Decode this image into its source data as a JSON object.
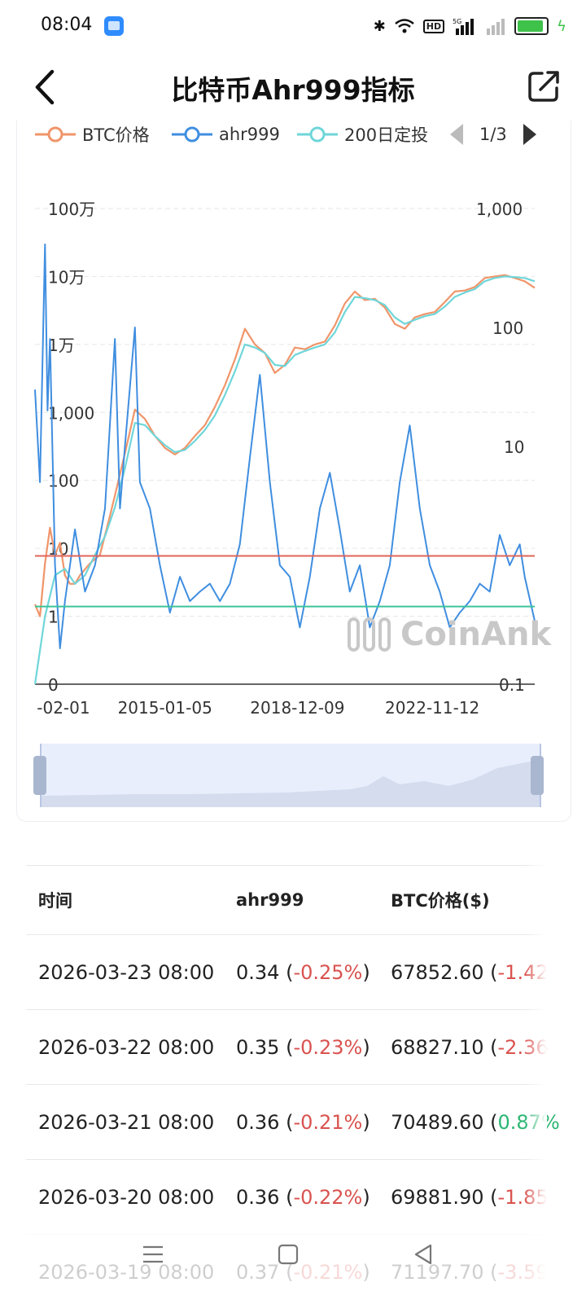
{
  "status": {
    "time": "08:04",
    "hd": "HD",
    "signal_label": "5G",
    "battery_level": 0.9
  },
  "header": {
    "title": "比特币Ahr999指标"
  },
  "legend": {
    "items": [
      {
        "label": "BTC价格",
        "color": "#f0956a"
      },
      {
        "label": "ahr999",
        "color": "#3f8ee0"
      },
      {
        "label": "200日定投",
        "color": "#6fd6d9"
      }
    ],
    "page": "1/3"
  },
  "watermark": "CoinAnk",
  "chart_data": {
    "type": "line",
    "x_tick_labels": [
      "-02-01",
      "2015-01-05",
      "2018-12-09",
      "2022-11-12"
    ],
    "y_left_ticks": [
      "100万",
      "10万",
      "1万",
      "1,000",
      "100",
      "10",
      "1",
      "0"
    ],
    "y_right_ticks": [
      "1,000",
      "100",
      "10",
      "0.1"
    ],
    "y_left_scale": "log",
    "y_right_scale": "log",
    "reference_lines": [
      {
        "value": 1.2,
        "color": "#e0645a"
      },
      {
        "value": 0.45,
        "color": "#3cc39a"
      }
    ],
    "series": [
      {
        "name": "BTC价格",
        "axis": "left",
        "color": "#f0956a",
        "points": [
          [
            0.0,
            1.5
          ],
          [
            0.01,
            1
          ],
          [
            0.02,
            6
          ],
          [
            0.03,
            20
          ],
          [
            0.04,
            8
          ],
          [
            0.05,
            12
          ],
          [
            0.06,
            4
          ],
          [
            0.07,
            3
          ],
          [
            0.08,
            3
          ],
          [
            0.09,
            4
          ],
          [
            0.11,
            6
          ],
          [
            0.13,
            8
          ],
          [
            0.15,
            30
          ],
          [
            0.16,
            60
          ],
          [
            0.18,
            250
          ],
          [
            0.2,
            1100
          ],
          [
            0.22,
            800
          ],
          [
            0.24,
            450
          ],
          [
            0.26,
            300
          ],
          [
            0.28,
            240
          ],
          [
            0.3,
            300
          ],
          [
            0.32,
            450
          ],
          [
            0.34,
            650
          ],
          [
            0.36,
            1200
          ],
          [
            0.38,
            2500
          ],
          [
            0.4,
            6000
          ],
          [
            0.42,
            17000
          ],
          [
            0.44,
            10000
          ],
          [
            0.46,
            7500
          ],
          [
            0.48,
            3800
          ],
          [
            0.5,
            5000
          ],
          [
            0.52,
            9000
          ],
          [
            0.54,
            8500
          ],
          [
            0.56,
            10000
          ],
          [
            0.58,
            11000
          ],
          [
            0.6,
            19000
          ],
          [
            0.62,
            40000
          ],
          [
            0.64,
            60000
          ],
          [
            0.66,
            45000
          ],
          [
            0.68,
            47000
          ],
          [
            0.7,
            35000
          ],
          [
            0.72,
            20000
          ],
          [
            0.74,
            17000
          ],
          [
            0.76,
            25000
          ],
          [
            0.78,
            28000
          ],
          [
            0.8,
            30000
          ],
          [
            0.82,
            42000
          ],
          [
            0.84,
            60000
          ],
          [
            0.86,
            62000
          ],
          [
            0.88,
            70000
          ],
          [
            0.9,
            95000
          ],
          [
            0.92,
            100000
          ],
          [
            0.94,
            105000
          ],
          [
            0.96,
            95000
          ],
          [
            0.98,
            85000
          ],
          [
            1.0,
            68000
          ]
        ]
      },
      {
        "name": "200日定投",
        "axis": "left",
        "color": "#6fd6d9",
        "points": [
          [
            0.0,
            0.1
          ],
          [
            0.02,
            1
          ],
          [
            0.04,
            4
          ],
          [
            0.06,
            5
          ],
          [
            0.08,
            3
          ],
          [
            0.1,
            4
          ],
          [
            0.12,
            8
          ],
          [
            0.14,
            15
          ],
          [
            0.16,
            40
          ],
          [
            0.18,
            150
          ],
          [
            0.2,
            700
          ],
          [
            0.22,
            650
          ],
          [
            0.24,
            450
          ],
          [
            0.26,
            330
          ],
          [
            0.28,
            260
          ],
          [
            0.3,
            280
          ],
          [
            0.32,
            380
          ],
          [
            0.34,
            550
          ],
          [
            0.36,
            900
          ],
          [
            0.38,
            1800
          ],
          [
            0.4,
            4000
          ],
          [
            0.42,
            10000
          ],
          [
            0.44,
            9000
          ],
          [
            0.46,
            7500
          ],
          [
            0.48,
            5000
          ],
          [
            0.5,
            4800
          ],
          [
            0.52,
            7000
          ],
          [
            0.54,
            8000
          ],
          [
            0.56,
            9000
          ],
          [
            0.58,
            10000
          ],
          [
            0.6,
            15000
          ],
          [
            0.62,
            30000
          ],
          [
            0.64,
            50000
          ],
          [
            0.66,
            48000
          ],
          [
            0.68,
            45000
          ],
          [
            0.7,
            38000
          ],
          [
            0.72,
            25000
          ],
          [
            0.74,
            20000
          ],
          [
            0.76,
            23000
          ],
          [
            0.78,
            26000
          ],
          [
            0.8,
            28000
          ],
          [
            0.82,
            36000
          ],
          [
            0.84,
            50000
          ],
          [
            0.86,
            58000
          ],
          [
            0.88,
            65000
          ],
          [
            0.9,
            85000
          ],
          [
            0.92,
            95000
          ],
          [
            0.94,
            100000
          ],
          [
            0.96,
            98000
          ],
          [
            0.98,
            95000
          ],
          [
            1.0,
            85000
          ]
        ]
      },
      {
        "name": "ahr999",
        "axis": "right",
        "color": "#3f8ee0",
        "points": [
          [
            0.0,
            30
          ],
          [
            0.01,
            5
          ],
          [
            0.02,
            500
          ],
          [
            0.025,
            20
          ],
          [
            0.03,
            80
          ],
          [
            0.04,
            1
          ],
          [
            0.05,
            0.2
          ],
          [
            0.06,
            0.5
          ],
          [
            0.07,
            1
          ],
          [
            0.08,
            2
          ],
          [
            0.1,
            0.6
          ],
          [
            0.12,
            1
          ],
          [
            0.14,
            3
          ],
          [
            0.16,
            80
          ],
          [
            0.17,
            3
          ],
          [
            0.18,
            10
          ],
          [
            0.2,
            100
          ],
          [
            0.21,
            5
          ],
          [
            0.23,
            3
          ],
          [
            0.25,
            1
          ],
          [
            0.27,
            0.4
          ],
          [
            0.29,
            0.8
          ],
          [
            0.31,
            0.5
          ],
          [
            0.33,
            0.6
          ],
          [
            0.35,
            0.7
          ],
          [
            0.37,
            0.5
          ],
          [
            0.39,
            0.7
          ],
          [
            0.41,
            1.5
          ],
          [
            0.43,
            8
          ],
          [
            0.45,
            40
          ],
          [
            0.47,
            5
          ],
          [
            0.49,
            1
          ],
          [
            0.51,
            0.8
          ],
          [
            0.53,
            0.3
          ],
          [
            0.55,
            0.8
          ],
          [
            0.57,
            3
          ],
          [
            0.59,
            6
          ],
          [
            0.61,
            2
          ],
          [
            0.63,
            0.6
          ],
          [
            0.65,
            1
          ],
          [
            0.67,
            0.3
          ],
          [
            0.69,
            0.5
          ],
          [
            0.71,
            1
          ],
          [
            0.73,
            5
          ],
          [
            0.75,
            15
          ],
          [
            0.77,
            3
          ],
          [
            0.79,
            1
          ],
          [
            0.81,
            0.6
          ],
          [
            0.83,
            0.3
          ],
          [
            0.85,
            0.4
          ],
          [
            0.87,
            0.5
          ],
          [
            0.89,
            0.7
          ],
          [
            0.91,
            0.6
          ],
          [
            0.93,
            1.8
          ],
          [
            0.95,
            1
          ],
          [
            0.97,
            1.5
          ],
          [
            0.98,
            0.8
          ],
          [
            1.0,
            0.34
          ]
        ]
      }
    ]
  },
  "table": {
    "headers": [
      "时间",
      "ahr999",
      "BTC价格($)"
    ],
    "rows": [
      {
        "time": "2026-03-23 08:00",
        "ahr": "0.34",
        "ahr_chg": "-0.25%",
        "price": "67852.60",
        "price_chg": "-1.42",
        "price_dir": "neg"
      },
      {
        "time": "2026-03-22 08:00",
        "ahr": "0.35",
        "ahr_chg": "-0.23%",
        "price": "68827.10",
        "price_chg": "-2.36",
        "price_dir": "neg"
      },
      {
        "time": "2026-03-21 08:00",
        "ahr": "0.36",
        "ahr_chg": "-0.21%",
        "price": "70489.60",
        "price_chg": "0.87%",
        "price_dir": "pos"
      },
      {
        "time": "2026-03-20 08:00",
        "ahr": "0.36",
        "ahr_chg": "-0.22%",
        "price": "69881.90",
        "price_chg": "-1.85",
        "price_dir": "neg"
      },
      {
        "time": "2026-03-19 08:00",
        "ahr": "0.37",
        "ahr_chg": "-0.21%",
        "price": "71197.70",
        "price_chg": "-3.59",
        "price_dir": "neg"
      }
    ]
  }
}
